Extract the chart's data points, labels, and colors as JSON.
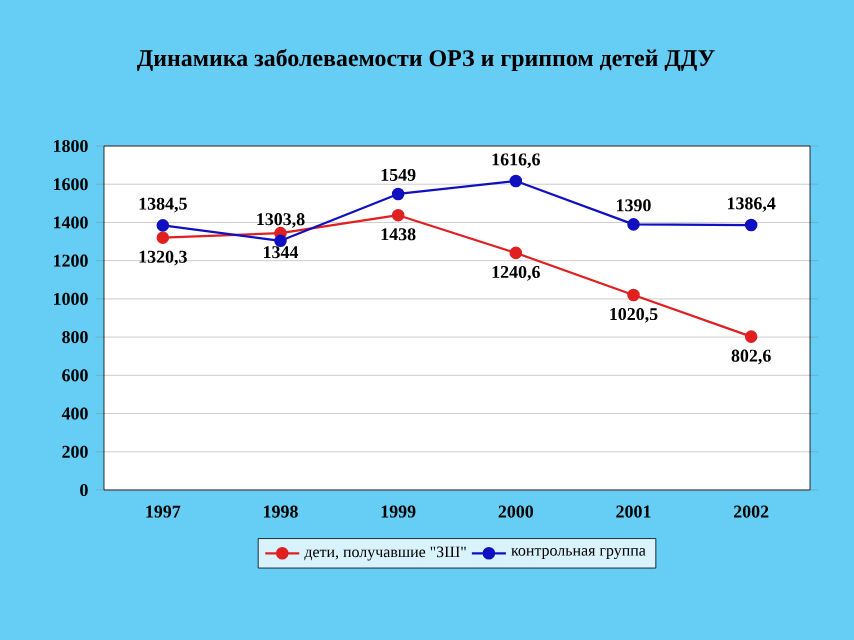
{
  "chart_data": {
    "type": "line",
    "title": "Динамика заболеваемости ОРЗ и гриппом детей ДДУ",
    "categories": [
      "1997",
      "1998",
      "1999",
      "2000",
      "2001",
      "2002"
    ],
    "series": [
      {
        "name": "дети, получавшие \"ЗШ\"",
        "color": "#e02020",
        "values": [
          1320.3,
          1344,
          1438,
          1240.6,
          1020.5,
          802.6
        ],
        "value_labels": [
          "1320,3",
          "1344",
          "1438",
          "1240,6",
          "1020,5",
          "802,6"
        ]
      },
      {
        "name": "контрольная группа",
        "color": "#1010c0",
        "values": [
          1384.5,
          1303.8,
          1549,
          1616.6,
          1390,
          1386.4
        ],
        "value_labels": [
          "1384,5",
          "1303,8",
          "1549",
          "1616,6",
          "1390",
          "1386,4"
        ]
      }
    ],
    "ylim": [
      0,
      1800
    ],
    "yticks": [
      0,
      200,
      400,
      600,
      800,
      1000,
      1200,
      1400,
      1600,
      1800
    ],
    "grid": "y",
    "legend": "bottom",
    "marker": "circle",
    "line_style": "solid"
  }
}
